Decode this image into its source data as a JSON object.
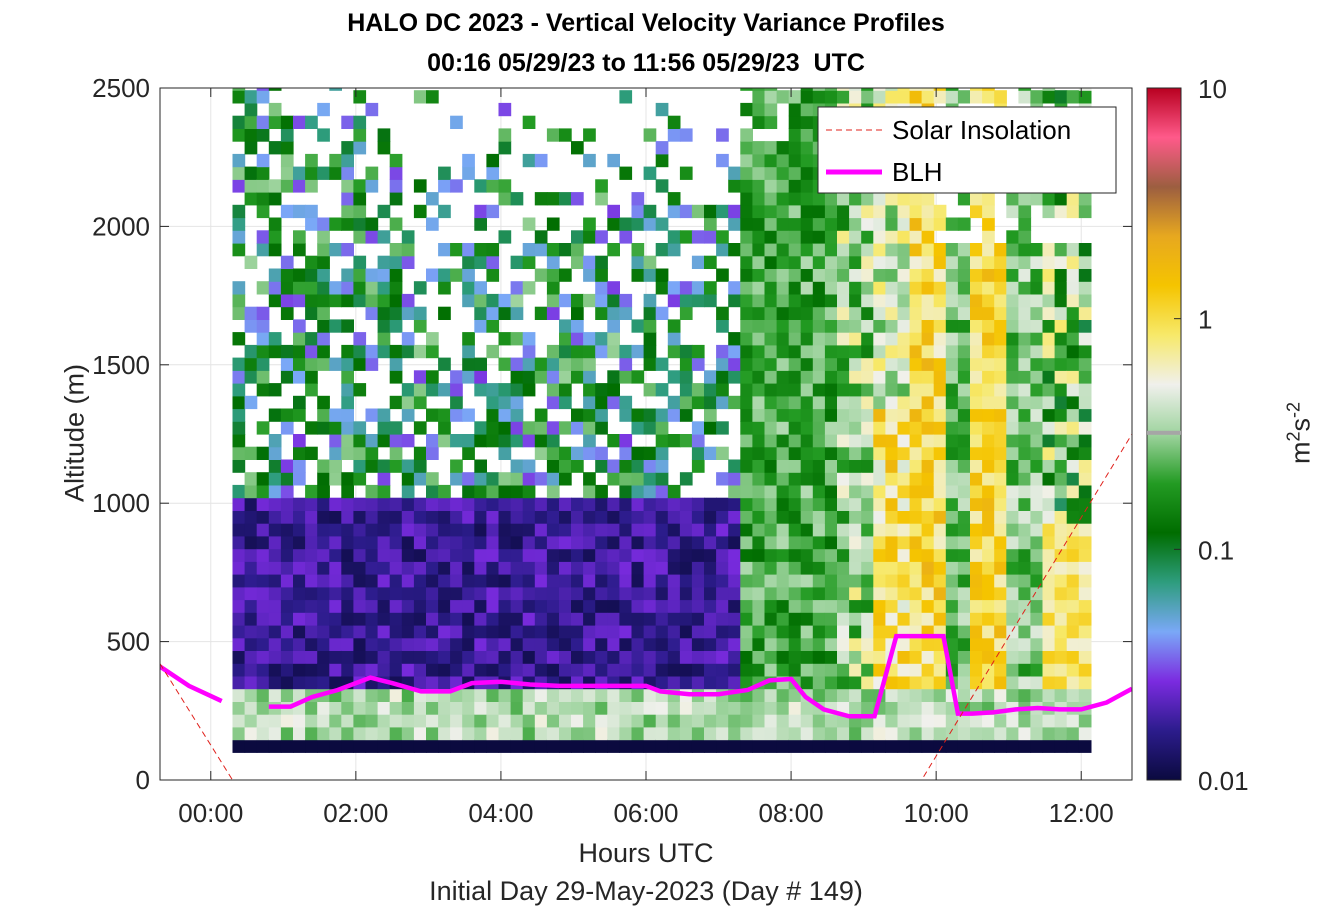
{
  "chart_data": {
    "type": "heatmap",
    "title": "HALO DC 2023 - Vertical Velocity Variance Profiles",
    "subtitle": "00:16 05/29/23 to 11:56 05/29/23  UTC",
    "xlabel": "Hours UTC",
    "xsublabel": "Initial Day 29-May-2023 (Day # 149)",
    "ylabel": "Altitude (m)",
    "colorbar_label": "m",
    "colorbar_label_sup1": "2",
    "colorbar_label_mid": "s",
    "colorbar_label_sup2": "-2",
    "x_range_hours": [
      -0.7,
      12.7
    ],
    "x_ticks": [
      "00:00",
      "02:00",
      "04:00",
      "06:00",
      "08:00",
      "10:00",
      "12:00"
    ],
    "x_tick_values": [
      0,
      2,
      4,
      6,
      8,
      10,
      12
    ],
    "ylim": [
      0,
      2500
    ],
    "y_ticks": [
      0,
      500,
      1000,
      1500,
      2000,
      2500
    ],
    "colorbar_ticks": [
      "0.01",
      "0.1",
      "1",
      "10"
    ],
    "colorbar_tick_values": [
      0.01,
      0.1,
      1,
      10
    ],
    "colorbar_scale": "log",
    "colorbar_marker_value": 0.32,
    "grid": true,
    "legend_position": "top-right",
    "legend": [
      {
        "name": "Solar Insolation",
        "style": "dashed",
        "color": "#e0201b"
      },
      {
        "name": "BLH",
        "style": "solid",
        "color": "#ff00ff"
      }
    ],
    "series": [
      {
        "name": "BLH",
        "x": [
          -0.7,
          -0.3,
          0.15,
          0.5,
          0.8,
          1.1,
          1.4,
          1.75,
          2.2,
          2.5,
          2.9,
          3.3,
          3.6,
          4.0,
          4.4,
          4.8,
          5.2,
          5.6,
          6.0,
          6.2,
          6.6,
          7.0,
          7.4,
          7.7,
          8.0,
          8.2,
          8.45,
          8.8,
          9.15,
          9.45,
          9.65,
          9.9,
          10.1,
          10.3,
          10.5,
          10.8,
          11.1,
          11.4,
          11.7,
          12.0,
          12.35,
          12.7
        ],
        "y": [
          410,
          340,
          285,
          null,
          265,
          265,
          300,
          325,
          370,
          350,
          320,
          320,
          350,
          355,
          345,
          340,
          340,
          340,
          340,
          320,
          310,
          310,
          325,
          360,
          365,
          300,
          255,
          230,
          230,
          520,
          520,
          520,
          520,
          240,
          240,
          245,
          255,
          260,
          255,
          255,
          280,
          330
        ]
      },
      {
        "name": "Solar Insolation",
        "x": [
          -0.7,
          0.3,
          9.8,
          12.7
        ],
        "y": [
          420,
          0,
          0,
          1250
        ]
      }
    ],
    "colors": {
      "cmap_stops": [
        "#0b0a3f",
        "#2c1c8c",
        "#7b2be0",
        "#7aa8f7",
        "#2e9d7e",
        "#006d00",
        "#239b23",
        "#9fd49f",
        "#f0f0ec",
        "#f7e96a",
        "#f5c400",
        "#e7a81f",
        "#9c5e40",
        "#ff5a8a",
        "#b80020"
      ]
    }
  }
}
